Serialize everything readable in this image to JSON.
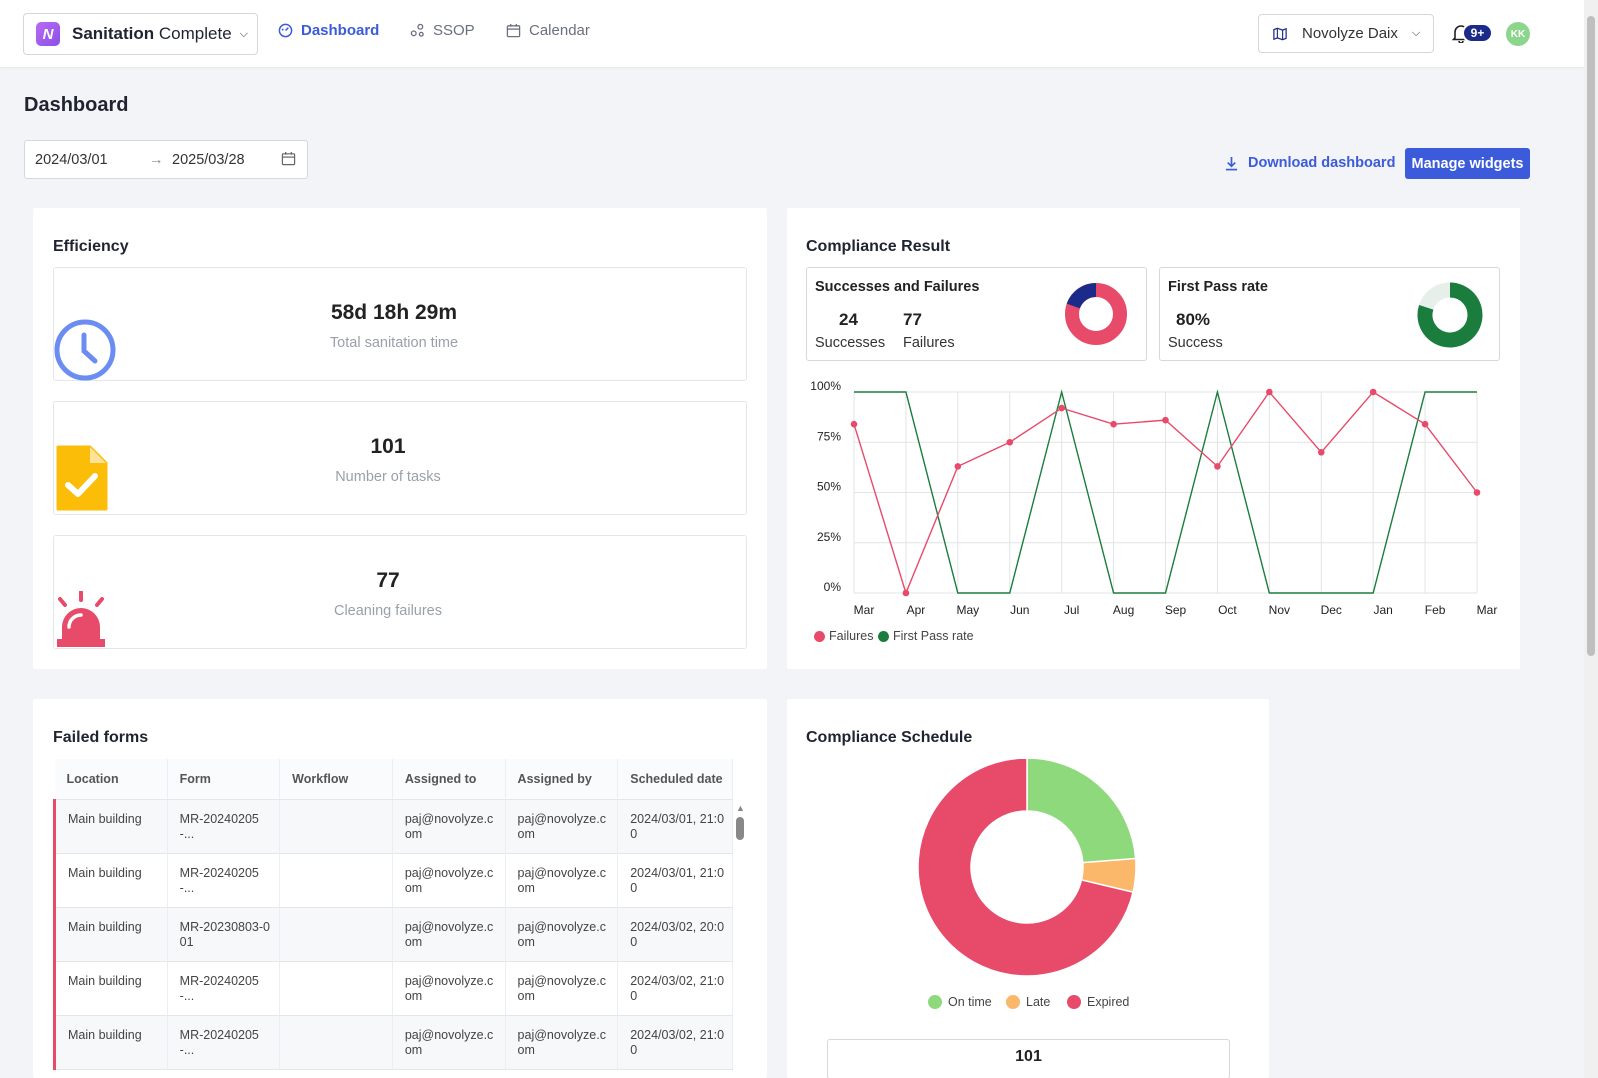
{
  "app": {
    "logo_letter": "N",
    "name_bold": "Sanitation",
    "name_rest": " Complete"
  },
  "nav": {
    "dashboard": "Dashboard",
    "ssop": "SSOP",
    "calendar": "Calendar"
  },
  "org": {
    "name": "Novolyze Daix"
  },
  "notifications": {
    "count": "9+"
  },
  "user": {
    "initials": "KK"
  },
  "page": {
    "title": "Dashboard"
  },
  "date_range": {
    "start": "2024/03/01",
    "end": "2025/03/28",
    "separator": "→"
  },
  "actions": {
    "download": "Download dashboard",
    "manage": "Manage widgets"
  },
  "efficiency": {
    "title": "Efficiency",
    "metrics": [
      {
        "value": "58d 18h 29m",
        "label": "Total sanitation time",
        "icon": "clock-icon"
      },
      {
        "value": "101",
        "label": "Number of tasks",
        "icon": "document-check-icon"
      },
      {
        "value": "77",
        "label": "Cleaning failures",
        "icon": "alarm-icon"
      }
    ]
  },
  "compliance": {
    "title": "Compliance Result",
    "successes_failures": {
      "title": "Successes and Failures",
      "successes": "24",
      "successes_label": "Successes",
      "failures": "77",
      "failures_label": "Failures"
    },
    "first_pass": {
      "title": "First Pass rate",
      "value": "80%",
      "label": "Success"
    },
    "colors": {
      "failures": "#e84a6a",
      "first_pass": "#1a7d3e",
      "success_navy": "#1c2b8a"
    }
  },
  "chart_data": [
    {
      "type": "line",
      "x": [
        "Mar",
        "Apr",
        "May",
        "Jun",
        "Jul",
        "Aug",
        "Sep",
        "Oct",
        "Nov",
        "Dec",
        "Jan",
        "Feb",
        "Mar"
      ],
      "yticks": [
        "0%",
        "25%",
        "50%",
        "75%",
        "100%"
      ],
      "ylim": [
        0,
        100
      ],
      "grid": true,
      "legend": "bottom-left",
      "series": [
        {
          "name": "Failures",
          "color": "#e84a6a",
          "markers": true,
          "values": [
            84,
            0,
            63,
            75,
            92,
            84,
            86,
            63,
            100,
            70,
            100,
            84,
            50
          ]
        },
        {
          "name": "First Pass rate",
          "color": "#1a7d3e",
          "markers": false,
          "values": [
            100,
            100,
            0,
            0,
            100,
            0,
            0,
            100,
            0,
            0,
            0,
            100,
            100
          ]
        }
      ]
    },
    {
      "type": "pie",
      "title": "Compliance Schedule",
      "legend": "bottom",
      "labels": [
        "On time",
        "Late",
        "Expired"
      ],
      "values": [
        24,
        5,
        72
      ],
      "colors": [
        "#8ed97c",
        "#fbb86a",
        "#e84a6a"
      ]
    }
  ],
  "failed_forms": {
    "title": "Failed forms",
    "columns": [
      "Location",
      "Form",
      "Workflow",
      "Assigned to",
      "Assigned by",
      "Scheduled date"
    ],
    "rows": [
      [
        "Main building",
        "MR-20240205-...",
        "",
        "paj@novolyze.com",
        "paj@novolyze.com",
        "2024/03/01, 21:00"
      ],
      [
        "Main building",
        "MR-20240205-...",
        "",
        "paj@novolyze.com",
        "paj@novolyze.com",
        "2024/03/01, 21:00"
      ],
      [
        "Main building",
        "MR-20230803-001",
        "",
        "paj@novolyze.com",
        "paj@novolyze.com",
        "2024/03/02, 20:00"
      ],
      [
        "Main building",
        "MR-20240205-...",
        "",
        "paj@novolyze.com",
        "paj@novolyze.com",
        "2024/03/02, 21:00"
      ],
      [
        "Main building",
        "MR-20240205-...",
        "",
        "paj@novolyze.com",
        "paj@novolyze.com",
        "2024/03/02, 21:00"
      ]
    ]
  },
  "schedule": {
    "title": "Compliance Schedule",
    "total": "101"
  }
}
